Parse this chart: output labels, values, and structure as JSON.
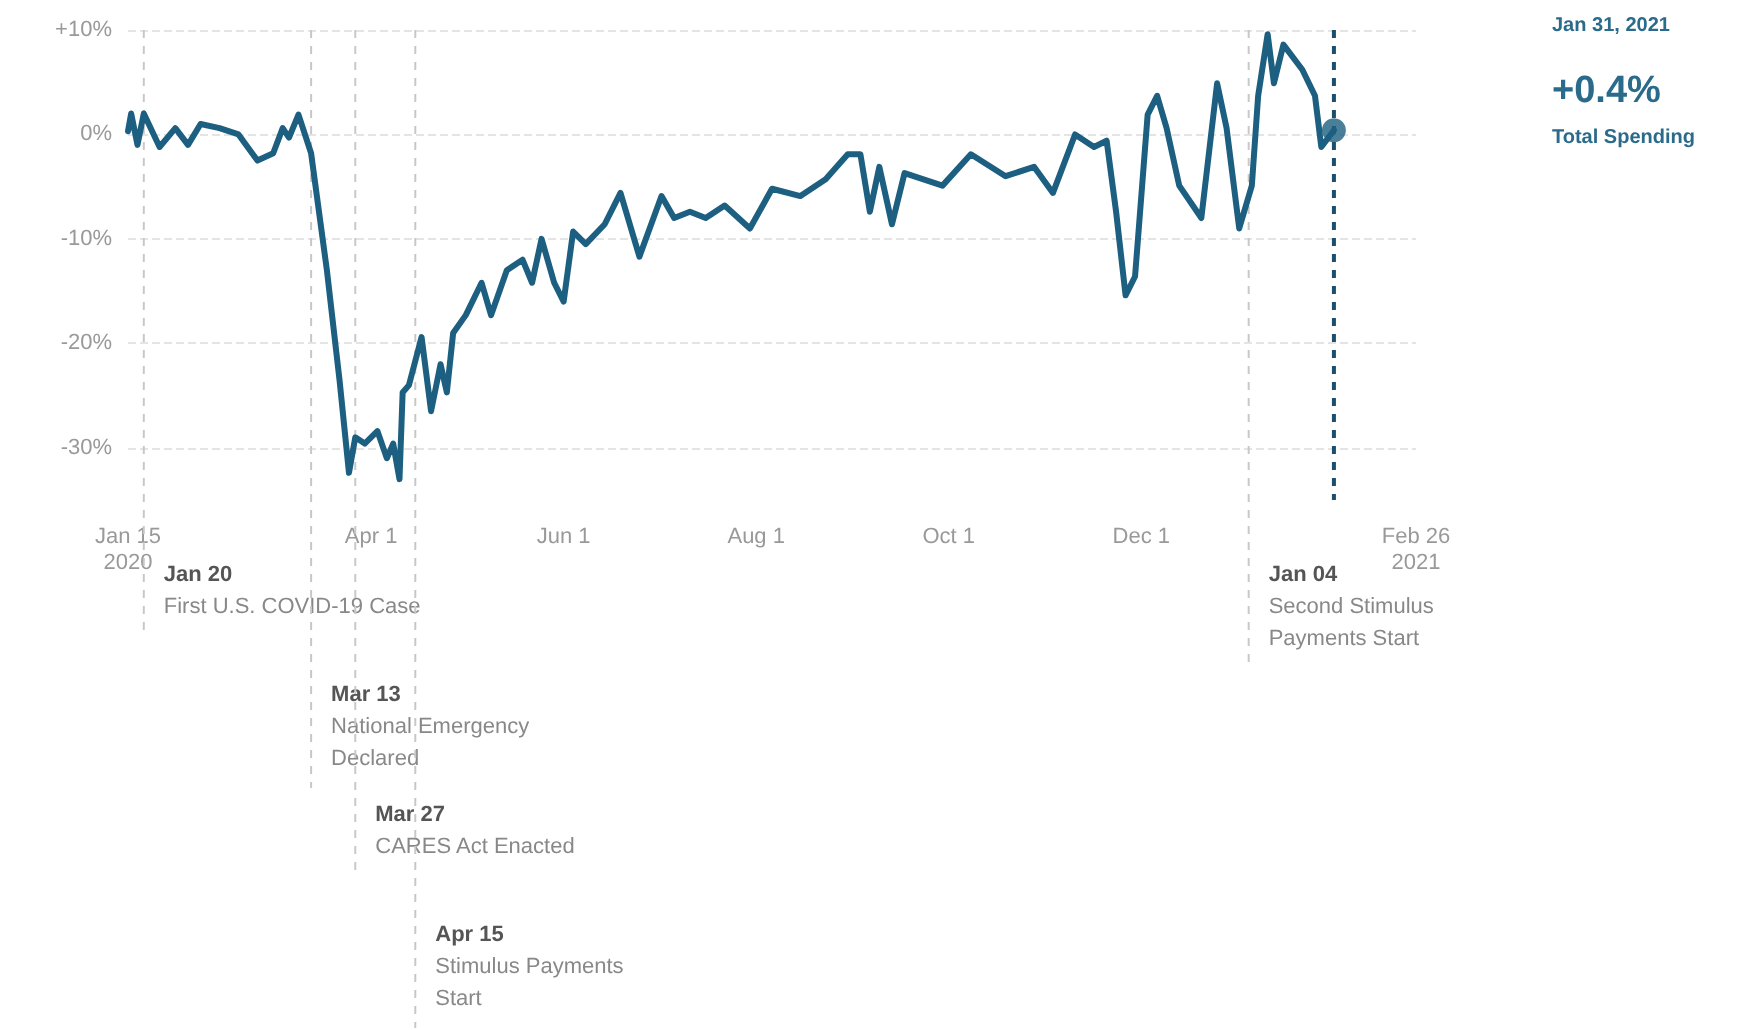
{
  "chart_data": {
    "type": "line",
    "series": [
      {
        "color": "#1d5f80",
        "x": [
          "2020-01-15",
          "2020-01-16",
          "2020-01-18",
          "2020-01-20",
          "2020-01-25",
          "2020-01-30",
          "2020-02-03",
          "2020-02-07",
          "2020-02-13",
          "2020-02-19",
          "2020-02-25",
          "2020-03-01",
          "2020-03-04",
          "2020-03-06",
          "2020-03-09",
          "2020-03-13",
          "2020-03-18",
          "2020-03-22",
          "2020-03-25",
          "2020-03-27",
          "2020-03-30",
          "2020-04-03",
          "2020-04-06",
          "2020-04-08",
          "2020-04-10",
          "2020-04-11",
          "2020-04-13",
          "2020-04-17",
          "2020-04-20",
          "2020-04-23",
          "2020-04-25",
          "2020-04-27",
          "2020-05-01",
          "2020-05-06",
          "2020-05-09",
          "2020-05-14",
          "2020-05-19",
          "2020-05-22",
          "2020-05-25",
          "2020-05-29",
          "2020-06-01",
          "2020-06-04",
          "2020-06-08",
          "2020-06-14",
          "2020-06-19",
          "2020-06-25",
          "2020-07-02",
          "2020-07-06",
          "2020-07-11",
          "2020-07-16",
          "2020-07-22",
          "2020-07-30",
          "2020-08-06",
          "2020-08-15",
          "2020-08-23",
          "2020-08-30",
          "2020-09-03",
          "2020-09-06",
          "2020-09-09",
          "2020-09-13",
          "2020-09-17",
          "2020-09-29",
          "2020-10-08",
          "2020-10-19",
          "2020-10-28",
          "2020-11-03",
          "2020-11-10",
          "2020-11-16",
          "2020-11-20",
          "2020-11-23",
          "2020-11-26",
          "2020-11-29",
          "2020-12-03",
          "2020-12-06",
          "2020-12-09",
          "2020-12-13",
          "2020-12-20",
          "2020-12-25",
          "2020-12-28",
          "2021-01-01",
          "2021-01-05",
          "2021-01-07",
          "2021-01-10",
          "2021-01-12",
          "2021-01-15",
          "2021-01-21",
          "2021-01-25",
          "2021-01-27",
          "2021-01-31"
        ],
        "values": [
          0.3,
          2,
          -1,
          2,
          -1.2,
          0.6,
          -1,
          1,
          0.6,
          0,
          -2.5,
          -1.8,
          0.6,
          -0.3,
          1.9,
          -1.8,
          -13,
          -23.5,
          -32.4,
          -29,
          -29.6,
          -28.4,
          -31,
          -29.6,
          -33,
          -24.7,
          -24,
          -19.4,
          -26.5,
          -22,
          -24.7,
          -19,
          -17.3,
          -14.2,
          -17.3,
          -13,
          -12,
          -14.2,
          -10,
          -14.2,
          -16,
          -9.3,
          -10.5,
          -8.6,
          -5.6,
          -11.7,
          -5.9,
          -8,
          -7.4,
          -8,
          -6.8,
          -9,
          -5.2,
          -5.9,
          -4.3,
          -1.9,
          -1.9,
          -7.4,
          -3.1,
          -8.6,
          -3.7,
          -4.9,
          -1.9,
          -4,
          -3.1,
          -5.6,
          0,
          -1.2,
          -0.6,
          -7.4,
          -15.4,
          -13.6,
          1.9,
          3.7,
          0.6,
          -4.9,
          -8,
          4.9,
          0.6,
          -9,
          -4.9,
          3.7,
          9.6,
          4.9,
          8.6,
          6.2,
          3.7,
          -1.2,
          0.4
        ]
      },
      {
        "type": "scatter",
        "color": "#1d5f80",
        "marker": "circle",
        "x": [
          "2021-01-31"
        ],
        "values": [
          0.4
        ]
      }
    ],
    "xlim": [
      "2020-01-15",
      "2021-02-26"
    ],
    "xticks": [
      {
        "value": "2020-01-15",
        "label": "Jan 15\n2020"
      },
      {
        "value": "2020-04-01",
        "label": "Apr 1"
      },
      {
        "value": "2020-06-01",
        "label": "Jun 1"
      },
      {
        "value": "2020-08-01",
        "label": "Aug 1"
      },
      {
        "value": "2020-10-01",
        "label": "Oct 1"
      },
      {
        "value": "2020-12-01",
        "label": "Dec 1"
      },
      {
        "value": "2021-02-26",
        "label": "Feb 26\n2021"
      }
    ],
    "ylim": [
      -35,
      10
    ],
    "yticks": [
      {
        "value": -30,
        "label": "-30%"
      },
      {
        "value": -20,
        "label": "-20%"
      },
      {
        "value": -10,
        "label": "-10%"
      },
      {
        "value": 0,
        "label": "0%"
      },
      {
        "value": 10,
        "label": "+10%"
      }
    ],
    "grid": "y",
    "marker": "none",
    "line_style": "solid",
    "ref_lines": [
      {
        "axis": "x",
        "value": "2020-01-20",
        "label": "Jan 20\nFirst U.S. COVID-19 Case",
        "color": "#c8c8c8",
        "line_style": "dashed"
      },
      {
        "axis": "x",
        "value": "2020-03-13",
        "label": "Mar 13\nNational Emergency\nDeclared",
        "color": "#c8c8c8",
        "line_style": "dashed"
      },
      {
        "axis": "x",
        "value": "2020-03-27",
        "label": "Mar 27\nCARES Act Enacted",
        "color": "#c8c8c8",
        "line_style": "dashed"
      },
      {
        "axis": "x",
        "value": "2020-04-15",
        "label": "Apr 15\nStimulus Payments\nStart",
        "color": "#c8c8c8",
        "line_style": "dashed"
      },
      {
        "axis": "x",
        "value": "2021-01-04",
        "label": "Jan 04\nSecond Stimulus\nPayments Start",
        "color": "#c8c8c8",
        "line_style": "dashed"
      },
      {
        "axis": "x",
        "value": "2021-01-31",
        "color": "#1d4f6a",
        "line_style": "dashed"
      }
    ],
    "annotations": [
      "Jan 31, 2021",
      "+0.4%",
      "Total Spending"
    ]
  }
}
